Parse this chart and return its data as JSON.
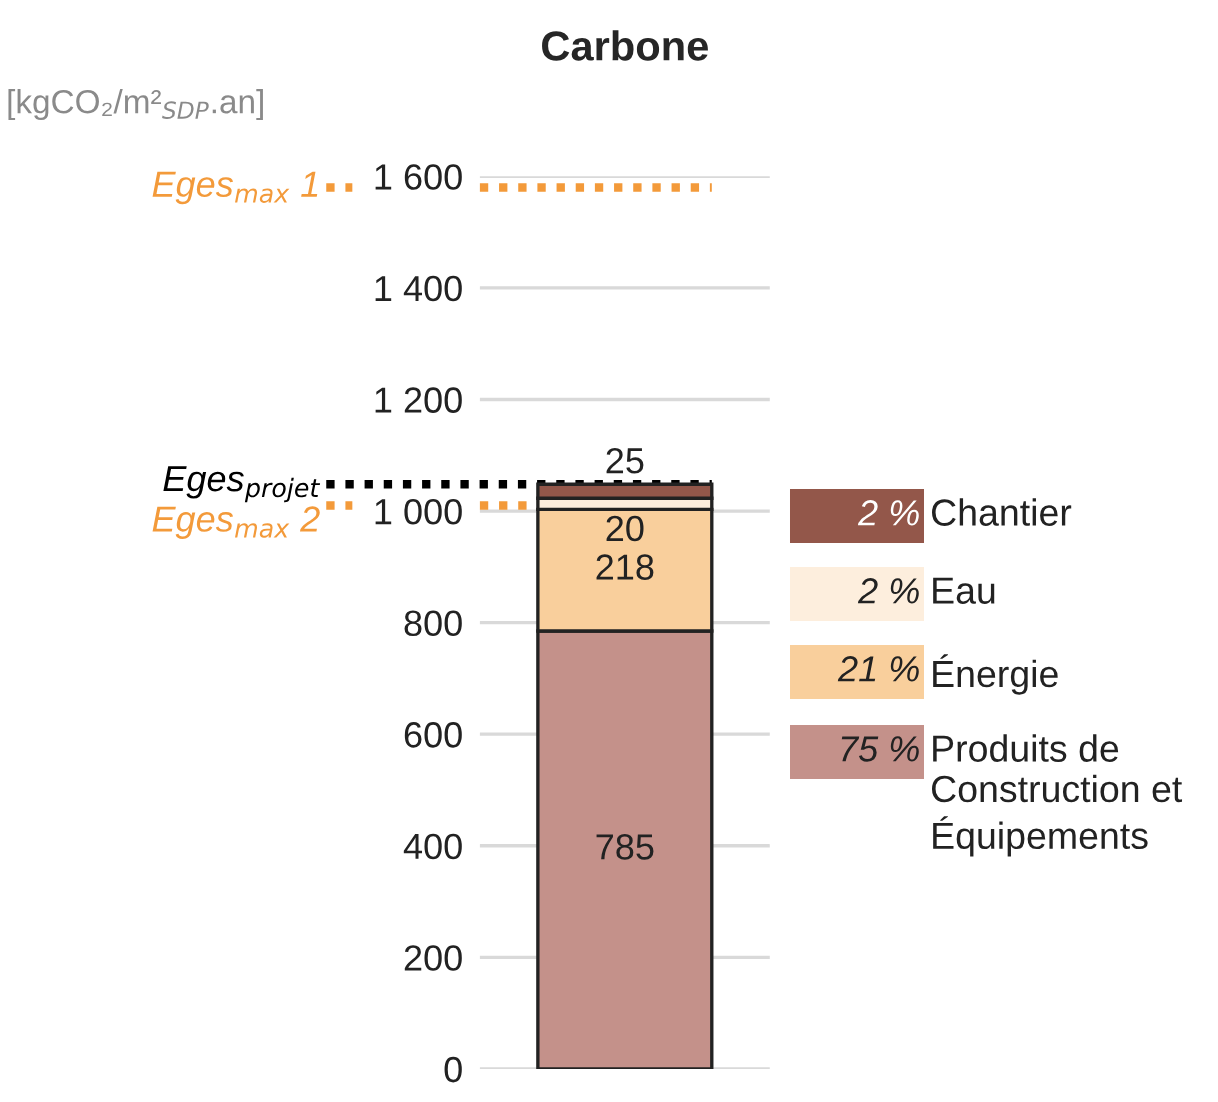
{
  "chart_data": {
    "type": "bar",
    "title": "Carbone",
    "ylabel": "[kgCO₂/m²$_{SDP}$.an]",
    "categories": [
      null
    ],
    "stacked": true,
    "series": [
      {
        "name": "Produits de Construction et Équipements",
        "color": "#c4918a",
        "values": [
          785
        ]
      },
      {
        "name": "Énergie",
        "color": "#f9cf9c",
        "values": [
          218
        ]
      },
      {
        "name": "Eau",
        "color": "#fdeedd",
        "values": [
          20
        ]
      },
      {
        "name": "Chantier",
        "color": "#93574a",
        "values": [
          25
        ]
      }
    ],
    "annotations": [
      "75 %",
      "21 %",
      "2 %",
      "2 %"
    ],
    "data_labels": true,
    "ylim": [
      0,
      1600
    ],
    "yticks": [
      0,
      200,
      400,
      600,
      800,
      {
        "value": 1000,
        "label": "1 000"
      },
      {
        "value": 1200,
        "label": "1 200"
      },
      {
        "value": 1400,
        "label": "1 400"
      },
      {
        "value": 1600,
        "label": "1 600"
      }
    ],
    "grid": "y",
    "legend": "right",
    "ref_lines": [
      {
        "axis": "y",
        "value": 1580,
        "label": "Eges$_{max}$ 1",
        "color": "#f39a3a",
        "line_style": "dotted"
      },
      {
        "axis": "y",
        "value": 1048,
        "label": "Eges$_{projet}$",
        "color": "#000000",
        "line_style": "dotted"
      },
      {
        "axis": "y",
        "value": 1010,
        "label": "Eges$_{max}$ 2",
        "color": "#f39a3a",
        "line_style": "dotted"
      }
    ]
  }
}
